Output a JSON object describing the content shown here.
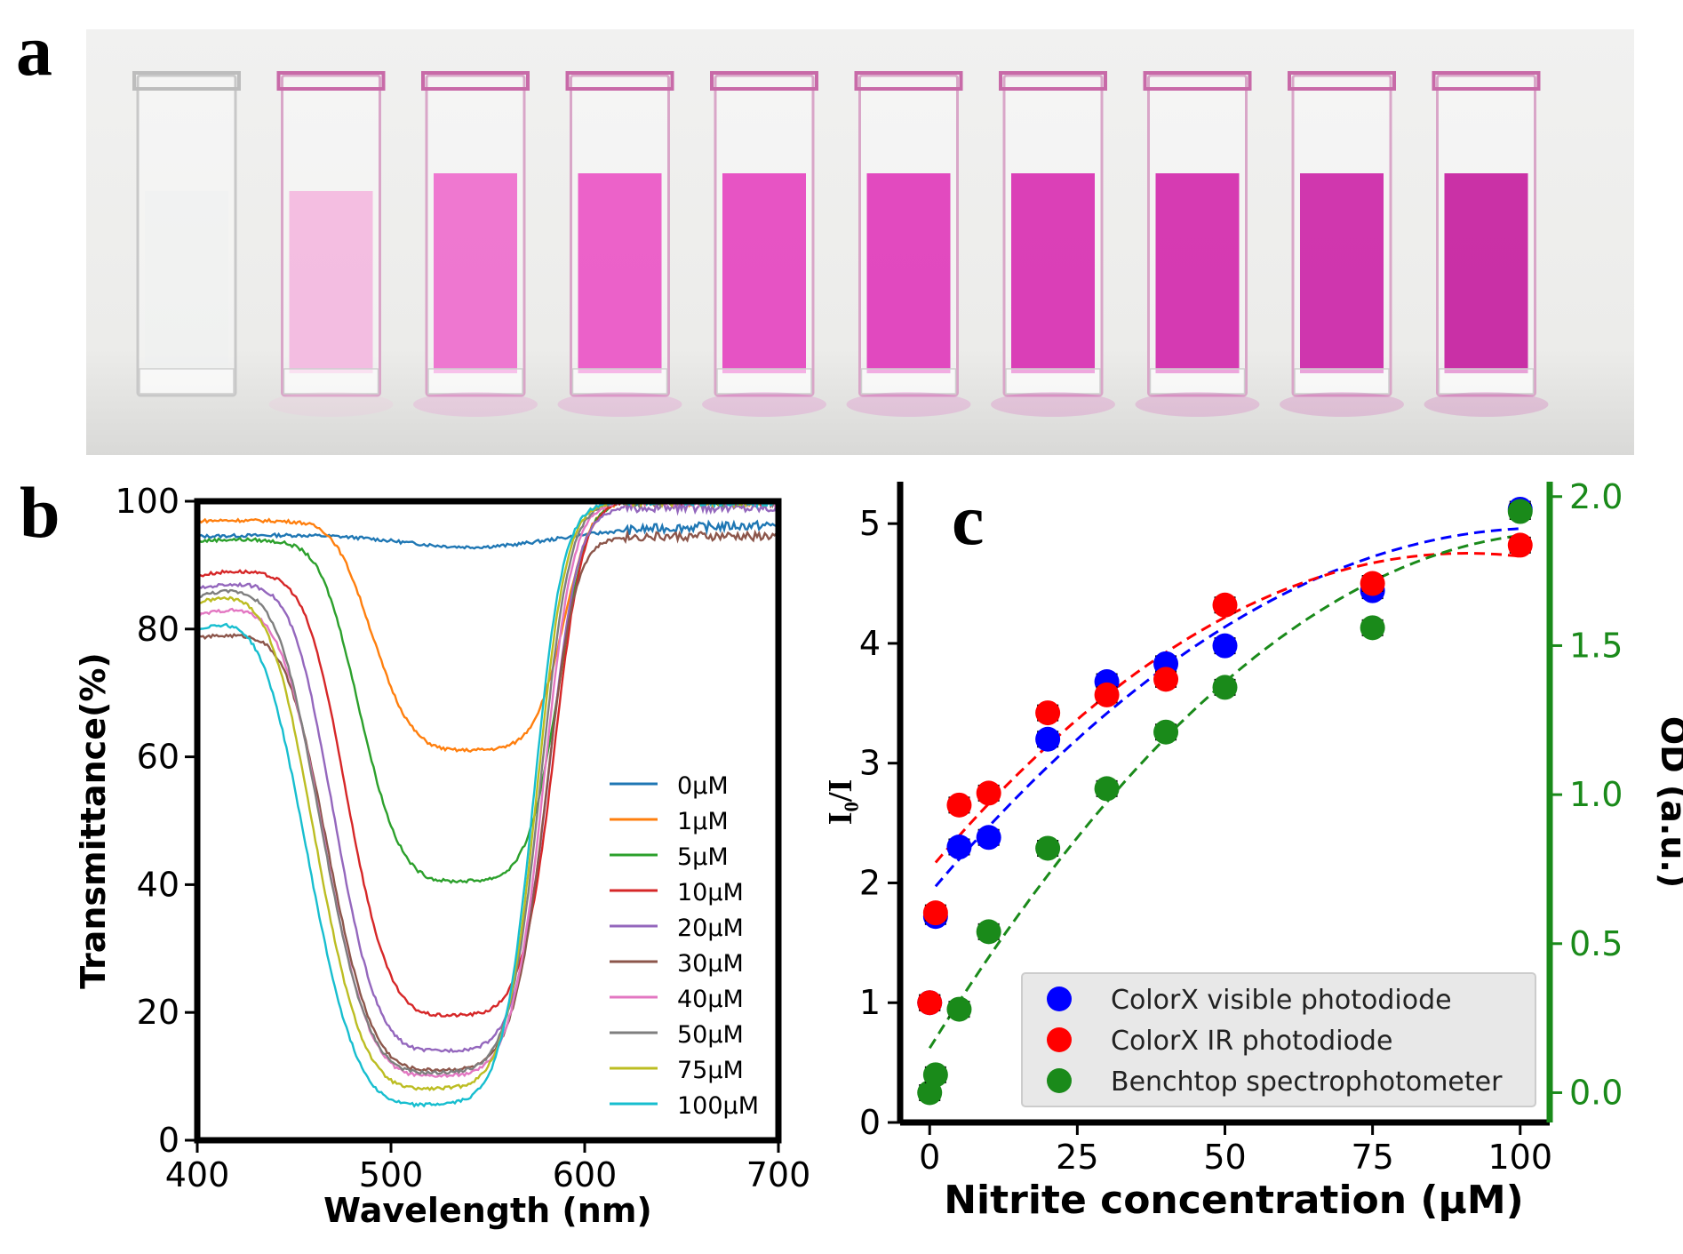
{
  "panels": {
    "a": {
      "label": "a",
      "photo_description": "ten cuvettes with increasing pink color"
    },
    "b": {
      "label": "b"
    },
    "c": {
      "label": "c"
    }
  },
  "photo": {
    "cuvette_colors": [
      "#eef0f0",
      "#f3b8e0",
      "#ee6ccd",
      "#ea55c6",
      "#e545c0",
      "#e03bbb",
      "#d830b2",
      "#d22aad",
      "#cc26a8",
      "#c520a0"
    ]
  },
  "chart_data": [
    {
      "id": "b",
      "type": "line",
      "title": "",
      "xlabel": "Wavelength (nm)",
      "ylabel": "Transmittance(%)",
      "xlim": [
        400,
        700
      ],
      "ylim": [
        0,
        100
      ],
      "xticks": [
        400,
        500,
        600,
        700
      ],
      "yticks": [
        0,
        20,
        40,
        60,
        80,
        100
      ],
      "grid": false,
      "legend_position": "center-right",
      "series": [
        {
          "name": "0μM",
          "color": "#1f77b4",
          "start": 94.5,
          "peak": 96,
          "min": 92,
          "min_x": 545,
          "end": 97
        },
        {
          "name": "1μM",
          "color": "#ff7f0e",
          "start": 96.5,
          "peak": 97,
          "min": 61,
          "min_x": 545,
          "end": 100
        },
        {
          "name": "5μM",
          "color": "#2ca02c",
          "start": 92.5,
          "peak": 94,
          "min": 40.5,
          "min_x": 540,
          "end": 100
        },
        {
          "name": "10μM",
          "color": "#d62728",
          "start": 85,
          "peak": 89,
          "min": 19.5,
          "min_x": 535,
          "end": 100
        },
        {
          "name": "20μM",
          "color": "#9467bd",
          "start": 83,
          "peak": 87,
          "min": 14,
          "min_x": 530,
          "end": 99
        },
        {
          "name": "30μM",
          "color": "#8c564b",
          "start": 77,
          "peak": 79,
          "min": 11,
          "min_x": 528,
          "end": 94.5
        },
        {
          "name": "40μM",
          "color": "#e377c2",
          "start": 78,
          "peak": 83,
          "min": 10,
          "min_x": 528,
          "end": 100
        },
        {
          "name": "50μM",
          "color": "#7f7f7f",
          "start": 81,
          "peak": 86,
          "min": 10.5,
          "min_x": 528,
          "end": 100
        },
        {
          "name": "75μM",
          "color": "#bcbd22",
          "start": 80,
          "peak": 85,
          "min": 8,
          "min_x": 526,
          "end": 100
        },
        {
          "name": "100μM",
          "color": "#17becf",
          "start": 75,
          "peak": 81,
          "min": 5.5,
          "min_x": 524,
          "end": 100
        }
      ]
    },
    {
      "id": "c",
      "type": "scatter",
      "title": "",
      "xlabel": "Nitrite concentration (μM)",
      "ylabel": "I₀/I",
      "y2label": "OD (a.u.)",
      "xlim": [
        -5,
        105
      ],
      "ylim": [
        0,
        5.35
      ],
      "y2lim": [
        -0.1,
        2.05
      ],
      "xticks": [
        0,
        25,
        50,
        75,
        100
      ],
      "yticks": [
        0,
        1,
        2,
        3,
        4,
        5
      ],
      "y2ticks": [
        "0.0",
        "0.5",
        "1.0",
        "1.5",
        "2.0"
      ],
      "y2color": "#1a8a1a",
      "grid": false,
      "legend_position": "lower-right",
      "x": [
        0,
        1,
        5,
        10,
        20,
        30,
        40,
        50,
        75,
        100
      ],
      "series": [
        {
          "name": "ColorX visible photodiode",
          "axis": "left",
          "color": "#0000ff",
          "values": [
            1.0,
            1.72,
            2.3,
            2.38,
            3.2,
            3.68,
            3.83,
            3.98,
            4.44,
            5.12
          ],
          "fit_color": "#0000ff"
        },
        {
          "name": "ColorX IR photodiode",
          "axis": "left",
          "color": "#ff0000",
          "values": [
            1.0,
            1.75,
            2.65,
            2.75,
            3.42,
            3.57,
            3.7,
            4.32,
            4.5,
            4.82
          ],
          "fit_color": "#ff0000"
        },
        {
          "name": "Benchtop spectrophotometer",
          "axis": "right",
          "color": "#1a8a1a",
          "values": [
            0.0,
            0.06,
            0.28,
            0.54,
            0.82,
            1.02,
            1.21,
            1.36,
            1.56,
            1.95
          ],
          "fit_color": "#1a8a1a"
        }
      ]
    }
  ]
}
